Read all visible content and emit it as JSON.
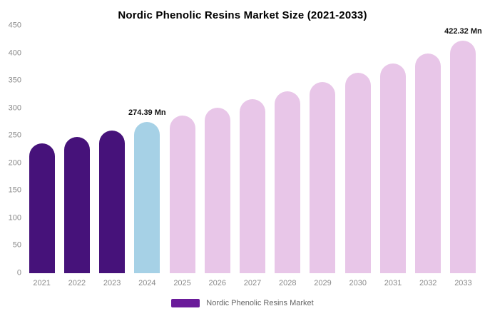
{
  "legend": {
    "label": "Nordic Phenolic Resins Market",
    "swatch_color": "#6a1b9a"
  },
  "chart_data": {
    "type": "bar",
    "title": "Nordic Phenolic Resins Market Size (2021-2033)",
    "xlabel": "",
    "ylabel": "",
    "categories": [
      "2021",
      "2022",
      "2023",
      "2024",
      "2025",
      "2026",
      "2027",
      "2028",
      "2029",
      "2030",
      "2031",
      "2032",
      "2033"
    ],
    "values": [
      236,
      248,
      260,
      274.39,
      287,
      301,
      316,
      331,
      347,
      364,
      381,
      400,
      422.32
    ],
    "unit": "Mn",
    "ylim": [
      0,
      450
    ],
    "yticks": [
      0,
      50,
      100,
      150,
      200,
      250,
      300,
      350,
      400,
      450
    ],
    "grid": false,
    "legend_position": "bottom",
    "colors": [
      "#46127a",
      "#46127a",
      "#46127a",
      "#a6d1e6",
      "#e8c6e8",
      "#e8c6e8",
      "#e8c6e8",
      "#e8c6e8",
      "#e8c6e8",
      "#e8c6e8",
      "#e8c6e8",
      "#e8c6e8",
      "#e8c6e8"
    ],
    "annotations": [
      {
        "category": "2024",
        "text": "274.39 Mn"
      },
      {
        "category": "2033",
        "text": "422.32 Mn"
      }
    ]
  }
}
